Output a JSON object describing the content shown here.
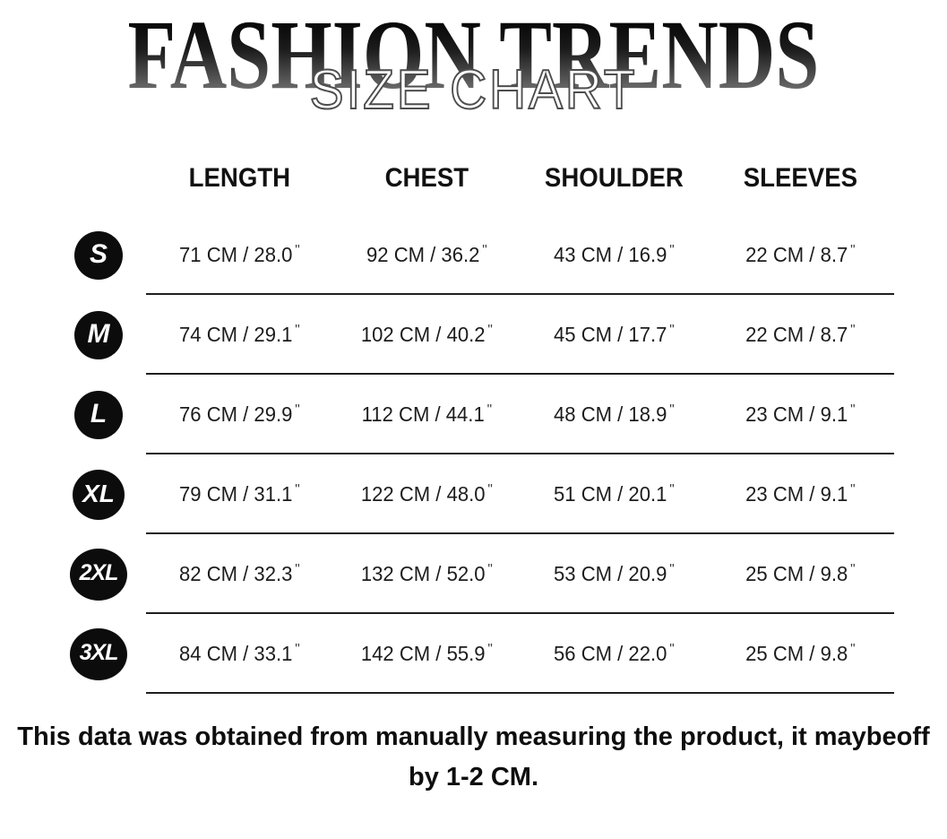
{
  "header": {
    "brand": "FASHION TRENDS",
    "subtitle": "SIZE CHART"
  },
  "chart_data": {
    "type": "table",
    "title": "FASHION TRENDS SIZE CHART",
    "columns": [
      "LENGTH",
      "CHEST",
      "SHOULDER",
      "SLEEVES"
    ],
    "unit_format": "{cm} CM / {inches}\"",
    "rows": [
      {
        "size": "S",
        "length": {
          "cm": 71,
          "in": "28.0"
        },
        "chest": {
          "cm": 92,
          "in": "36.2"
        },
        "shoulder": {
          "cm": 43,
          "in": "16.9"
        },
        "sleeves": {
          "cm": 22,
          "in": "8.7"
        }
      },
      {
        "size": "M",
        "length": {
          "cm": 74,
          "in": "29.1"
        },
        "chest": {
          "cm": 102,
          "in": "40.2"
        },
        "shoulder": {
          "cm": 45,
          "in": "17.7"
        },
        "sleeves": {
          "cm": 22,
          "in": "8.7"
        }
      },
      {
        "size": "L",
        "length": {
          "cm": 76,
          "in": "29.9"
        },
        "chest": {
          "cm": 112,
          "in": "44.1"
        },
        "shoulder": {
          "cm": 48,
          "in": "18.9"
        },
        "sleeves": {
          "cm": 23,
          "in": "9.1"
        }
      },
      {
        "size": "XL",
        "length": {
          "cm": 79,
          "in": "31.1"
        },
        "chest": {
          "cm": 122,
          "in": "48.0"
        },
        "shoulder": {
          "cm": 51,
          "in": "20.1"
        },
        "sleeves": {
          "cm": 23,
          "in": "9.1"
        }
      },
      {
        "size": "2XL",
        "length": {
          "cm": 82,
          "in": "32.3"
        },
        "chest": {
          "cm": 132,
          "in": "52.0"
        },
        "shoulder": {
          "cm": 53,
          "in": "20.9"
        },
        "sleeves": {
          "cm": 25,
          "in": "9.8"
        }
      },
      {
        "size": "3XL",
        "length": {
          "cm": 84,
          "in": "33.1"
        },
        "chest": {
          "cm": 142,
          "in": "55.9"
        },
        "shoulder": {
          "cm": 56,
          "in": "22.0"
        },
        "sleeves": {
          "cm": 25,
          "in": "9.8"
        }
      }
    ]
  },
  "footer": {
    "line1": "This data was obtained from manually measuring the product, it maybeoff",
    "line2": "by 1-2 CM."
  },
  "colors": {
    "background": "#ffffff",
    "text": "#1a1a1a",
    "badge_bg": "#0c0c0c",
    "badge_text": "#ffffff",
    "divider": "#1f1f1f",
    "title_gradient_top": "#000000",
    "title_gradient_bottom": "#8d8d8d",
    "subtitle_fill": "#ffffff",
    "subtitle_stroke": "#4d4d4d"
  }
}
